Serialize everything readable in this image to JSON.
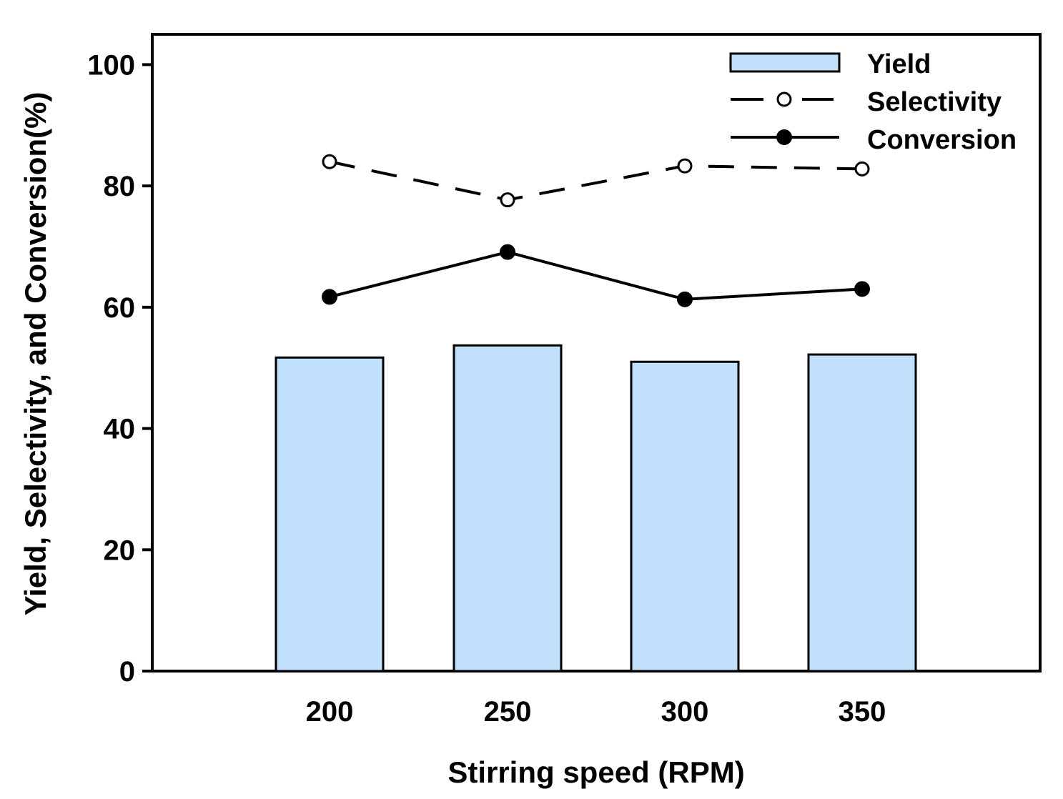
{
  "chart_data": {
    "type": "bar",
    "title": "",
    "xlabel": "Stirring speed (RPM)",
    "ylabel": "Yield, Selectivity, and Conversion(%)",
    "categories": [
      "200",
      "250",
      "300",
      "350"
    ],
    "ylim": [
      0,
      105
    ],
    "yticks": [
      "0",
      "20",
      "40",
      "60",
      "80",
      "100"
    ],
    "grid": false,
    "legend_position": "top-right",
    "series": [
      {
        "name": "Yield",
        "kind": "bar",
        "color": "#c0e0fc",
        "values": [
          51.7,
          53.7,
          51.0,
          52.2
        ]
      },
      {
        "name": "Selectivity",
        "kind": "line",
        "line_style": "dashed",
        "marker": "open-circle",
        "color": "#000000",
        "values": [
          84.0,
          77.7,
          83.3,
          82.8
        ]
      },
      {
        "name": "Conversion",
        "kind": "line",
        "line_style": "solid",
        "marker": "filled-circle",
        "color": "#000000",
        "values": [
          61.7,
          69.1,
          61.3,
          63.0
        ]
      }
    ]
  }
}
